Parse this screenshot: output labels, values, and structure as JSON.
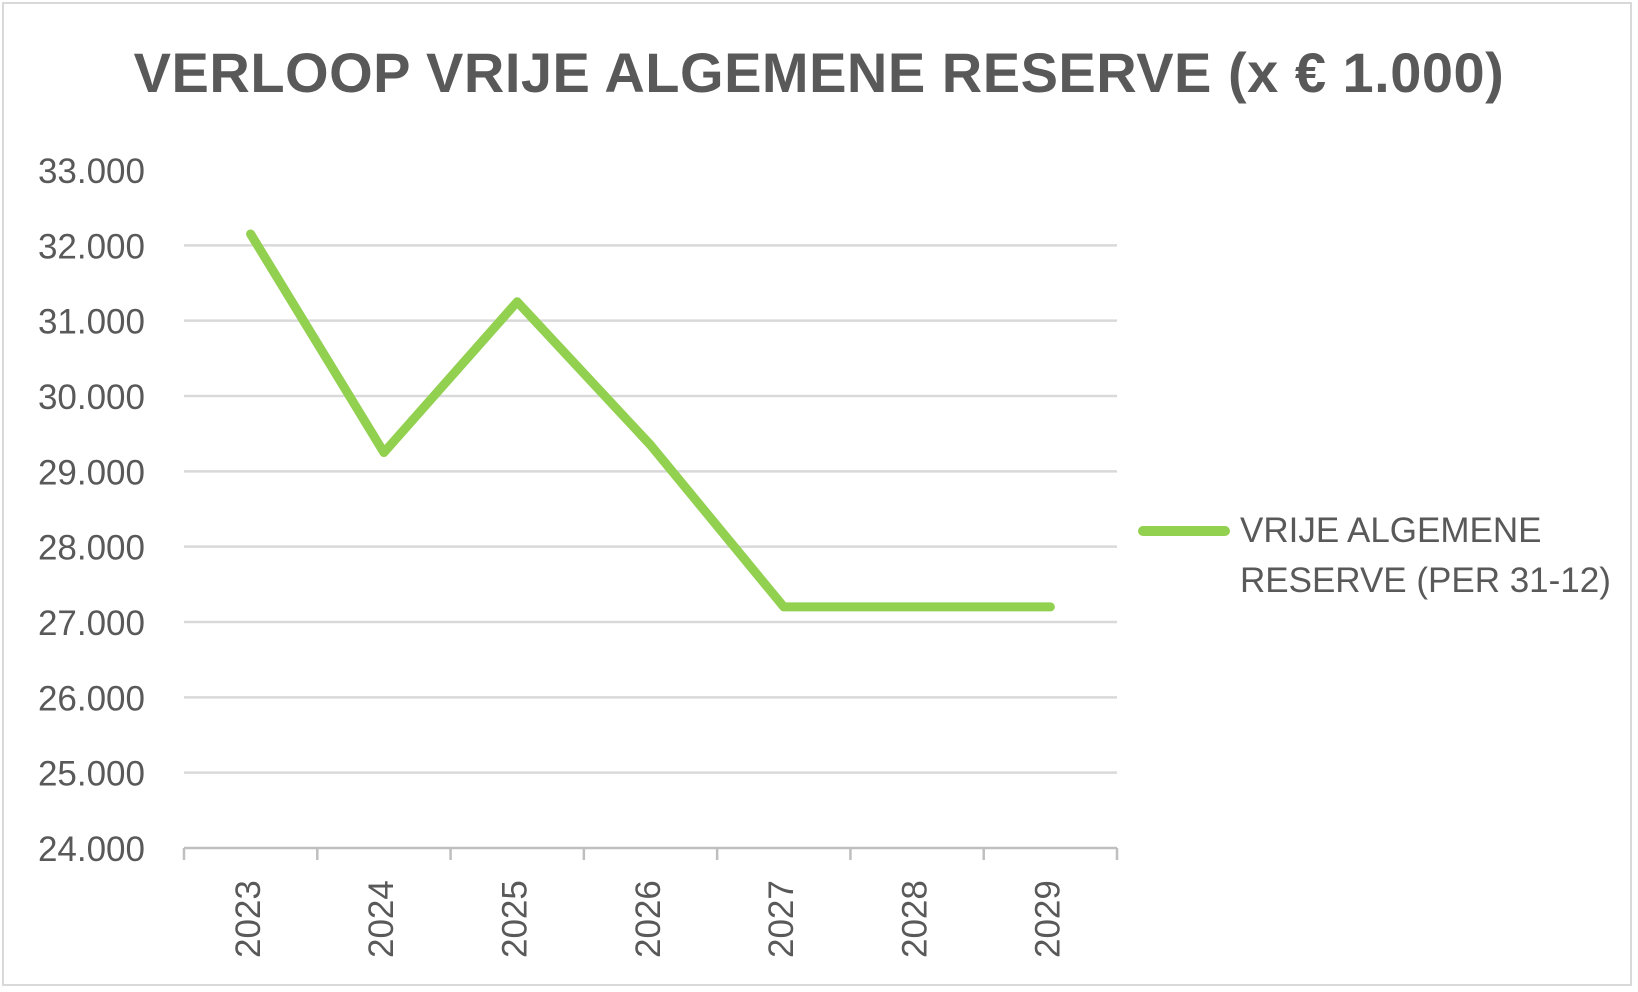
{
  "chart_data": {
    "type": "line",
    "title": "VERLOOP VRIJE ALGEMENE RESERVE (x € 1.000)",
    "xlabel": "",
    "ylabel": "",
    "categories": [
      "2023",
      "2024",
      "2025",
      "2026",
      "2027",
      "2028",
      "2029"
    ],
    "series": [
      {
        "name": "VRIJE ALGEMENE RESERVE (PER 31-12)",
        "values": [
          32150,
          29250,
          31250,
          29350,
          27200,
          27200,
          27200
        ],
        "color": "#92d050"
      }
    ],
    "ylim": [
      24000,
      33000
    ],
    "yticks": [
      24000,
      25000,
      26000,
      27000,
      28000,
      29000,
      30000,
      31000,
      32000,
      33000
    ],
    "ytick_labels": [
      "24.000",
      "25.000",
      "26.000",
      "27.000",
      "28.000",
      "29.000",
      "30.000",
      "31.000",
      "32.000",
      "33.000"
    ],
    "grid": true,
    "legend_position": "right",
    "colors": {
      "grid": "#d9d9d9",
      "axis": "#bfbfbf",
      "text": "#595959",
      "border": "#d9d9d9"
    }
  }
}
